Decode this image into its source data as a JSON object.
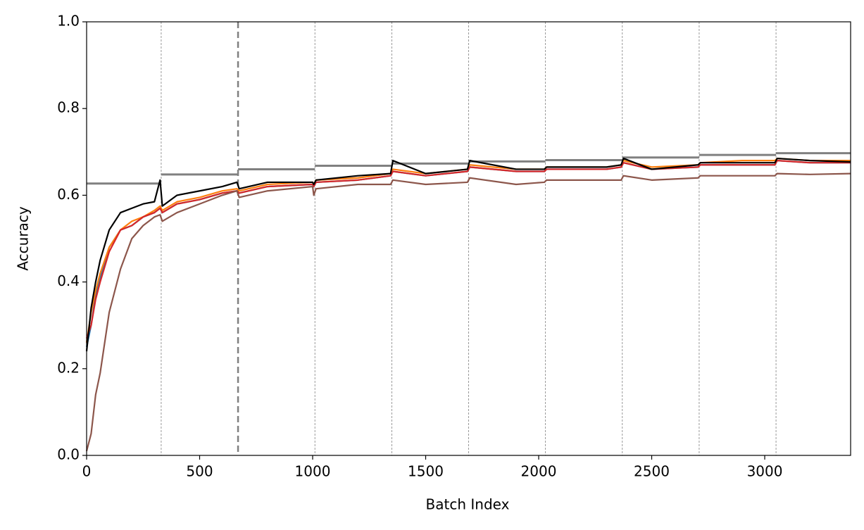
{
  "chart_data": {
    "type": "line",
    "xlabel": "Batch Index",
    "ylabel": "Accuracy",
    "xlim": [
      0,
      3380
    ],
    "ylim": [
      0,
      1
    ],
    "xticks": [
      0,
      500,
      1000,
      1500,
      2000,
      2500,
      3000
    ],
    "yticks": [
      {
        "value": 0,
        "label": "0.0"
      },
      0.2,
      0.4,
      0.6,
      0.8,
      {
        "value": 1,
        "label": "1.0"
      }
    ],
    "vlines": [
      330,
      670,
      1010,
      1350,
      1690,
      2030,
      2370,
      2710,
      3050
    ],
    "major_vline": 670,
    "vline_color": "#808080",
    "x": [
      0,
      20,
      40,
      60,
      100,
      150,
      200,
      250,
      300,
      325,
      335,
      400,
      500,
      600,
      665,
      675,
      800,
      1000,
      1005,
      1015,
      1200,
      1345,
      1355,
      1500,
      1685,
      1695,
      1900,
      2025,
      2035,
      2300,
      2365,
      2375,
      2500,
      2705,
      2715,
      2900,
      3045,
      3055,
      3200,
      3380
    ],
    "series": [
      {
        "color": "#1f77b4",
        "values": [
          0.25,
          0.3,
          0.37,
          0.41,
          0.48,
          0.52,
          0.53,
          0.55,
          0.56,
          0.57,
          0.56,
          0.58,
          0.59,
          0.605,
          0.61,
          0.605,
          0.62,
          0.625,
          0.62,
          0.63,
          0.635,
          0.645,
          0.655,
          0.645,
          0.655,
          0.665,
          0.655,
          0.655,
          0.66,
          0.66,
          0.665,
          0.675,
          0.66,
          0.665,
          0.67,
          0.67,
          0.67,
          0.68,
          0.675,
          0.675
        ]
      },
      {
        "color": "#ff7f0e",
        "values": [
          0.26,
          0.33,
          0.38,
          0.42,
          0.48,
          0.52,
          0.54,
          0.55,
          0.565,
          0.575,
          0.565,
          0.585,
          0.595,
          0.61,
          0.615,
          0.61,
          0.625,
          0.63,
          0.625,
          0.635,
          0.64,
          0.65,
          0.66,
          0.65,
          0.66,
          0.67,
          0.66,
          0.66,
          0.665,
          0.665,
          0.67,
          0.68,
          0.665,
          0.67,
          0.675,
          0.68,
          0.68,
          0.685,
          0.68,
          0.68
        ]
      },
      {
        "color": "#d62728",
        "values": [
          0.27,
          0.3,
          0.36,
          0.4,
          0.47,
          0.52,
          0.53,
          0.55,
          0.56,
          0.57,
          0.56,
          0.58,
          0.59,
          0.605,
          0.61,
          0.605,
          0.62,
          0.625,
          0.62,
          0.63,
          0.635,
          0.645,
          0.655,
          0.645,
          0.655,
          0.665,
          0.655,
          0.655,
          0.66,
          0.66,
          0.665,
          0.675,
          0.66,
          0.665,
          0.67,
          0.67,
          0.67,
          0.68,
          0.675,
          0.675
        ]
      },
      {
        "color": "#8c564b",
        "values": [
          0.01,
          0.05,
          0.14,
          0.19,
          0.33,
          0.43,
          0.5,
          0.53,
          0.55,
          0.555,
          0.54,
          0.56,
          0.58,
          0.6,
          0.61,
          0.595,
          0.61,
          0.62,
          0.6,
          0.615,
          0.625,
          0.625,
          0.635,
          0.625,
          0.63,
          0.64,
          0.625,
          0.63,
          0.635,
          0.635,
          0.635,
          0.645,
          0.635,
          0.64,
          0.645,
          0.645,
          0.645,
          0.65,
          0.648,
          0.65
        ]
      },
      {
        "color": "#000000",
        "values": [
          0.24,
          0.34,
          0.4,
          0.45,
          0.52,
          0.56,
          0.57,
          0.58,
          0.585,
          0.635,
          0.575,
          0.6,
          0.61,
          0.62,
          0.63,
          0.615,
          0.63,
          0.63,
          0.625,
          0.635,
          0.645,
          0.65,
          0.68,
          0.65,
          0.66,
          0.68,
          0.66,
          0.66,
          0.665,
          0.665,
          0.67,
          0.685,
          0.66,
          0.67,
          0.675,
          0.675,
          0.675,
          0.685,
          0.68,
          0.677
        ]
      }
    ],
    "steps": {
      "color": "#808080",
      "x": [
        0,
        330,
        330,
        330,
        670,
        670,
        670,
        1010,
        1010,
        1010,
        1350,
        1350,
        1350,
        1690,
        1690,
        1690,
        2030,
        2030,
        2030,
        2370,
        2370,
        2370,
        2710,
        2710,
        2710,
        3050,
        3050,
        3050,
        3380
      ],
      "values": [
        0.627,
        0.627,
        null,
        0.648,
        0.648,
        null,
        0.66,
        0.66,
        null,
        0.668,
        0.668,
        null,
        0.673,
        0.673,
        null,
        0.678,
        0.678,
        null,
        0.681,
        0.681,
        null,
        0.687,
        0.687,
        null,
        0.693,
        0.693,
        null,
        0.697,
        0.697
      ]
    }
  }
}
